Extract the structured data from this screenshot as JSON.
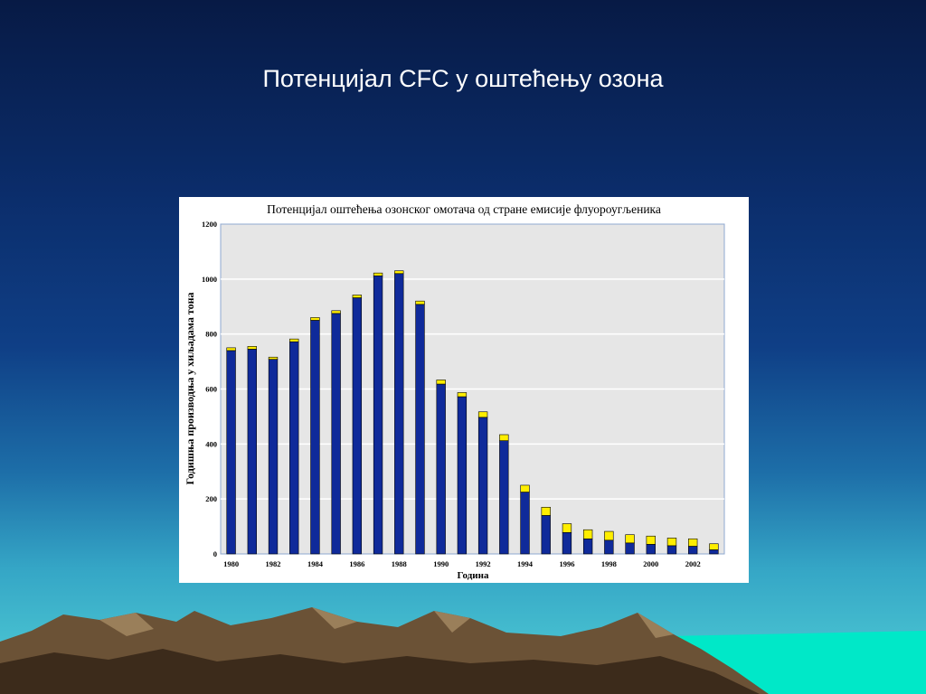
{
  "slide": {
    "title": "Потенцијал CFC у оштећењу озона"
  },
  "colors": {
    "background_top": "#071a45",
    "background_bottom": "#52d0d6",
    "bar_production": "#0f2a9a",
    "bar_top": "#ffee00",
    "plot_background": "#e6e6e6",
    "mountains": "#6b5236",
    "sea": "#00e8c8"
  },
  "chart_data": {
    "type": "bar",
    "title": "Потенцијал оштећења озонског омотача од стране емисије флуороугљеника",
    "xlabel": "Година",
    "ylabel": "Годишња производња у хиљадама тона",
    "ylim": [
      0,
      1200
    ],
    "y_ticks": [
      0,
      200,
      400,
      600,
      800,
      1000,
      1200
    ],
    "x_tick_labels": [
      "1980",
      "1982",
      "1984",
      "1986",
      "1988",
      "1990",
      "1992",
      "1994",
      "1996",
      "1998",
      "2000",
      "2002"
    ],
    "categories": [
      "1980",
      "1981",
      "1982",
      "1983",
      "1984",
      "1985",
      "1986",
      "1987",
      "1988",
      "1989",
      "1990",
      "1991",
      "1992",
      "1993",
      "1994",
      "1995",
      "1996",
      "1997",
      "1998",
      "1999",
      "2000",
      "2001",
      "2002",
      "2003"
    ],
    "series": [
      {
        "values": [
          740,
          745,
          708,
          772,
          850,
          875,
          932,
          1012,
          1020,
          908,
          618,
          572,
          497,
          412,
          225,
          140,
          78,
          55,
          50,
          40,
          35,
          30,
          28,
          15
        ]
      },
      {
        "values": [
          10,
          10,
          8,
          10,
          10,
          10,
          10,
          10,
          10,
          12,
          15,
          15,
          20,
          22,
          25,
          30,
          32,
          33,
          32,
          30,
          30,
          28,
          27,
          22
        ]
      }
    ],
    "stacked": true,
    "grid": true,
    "legend": "none"
  }
}
